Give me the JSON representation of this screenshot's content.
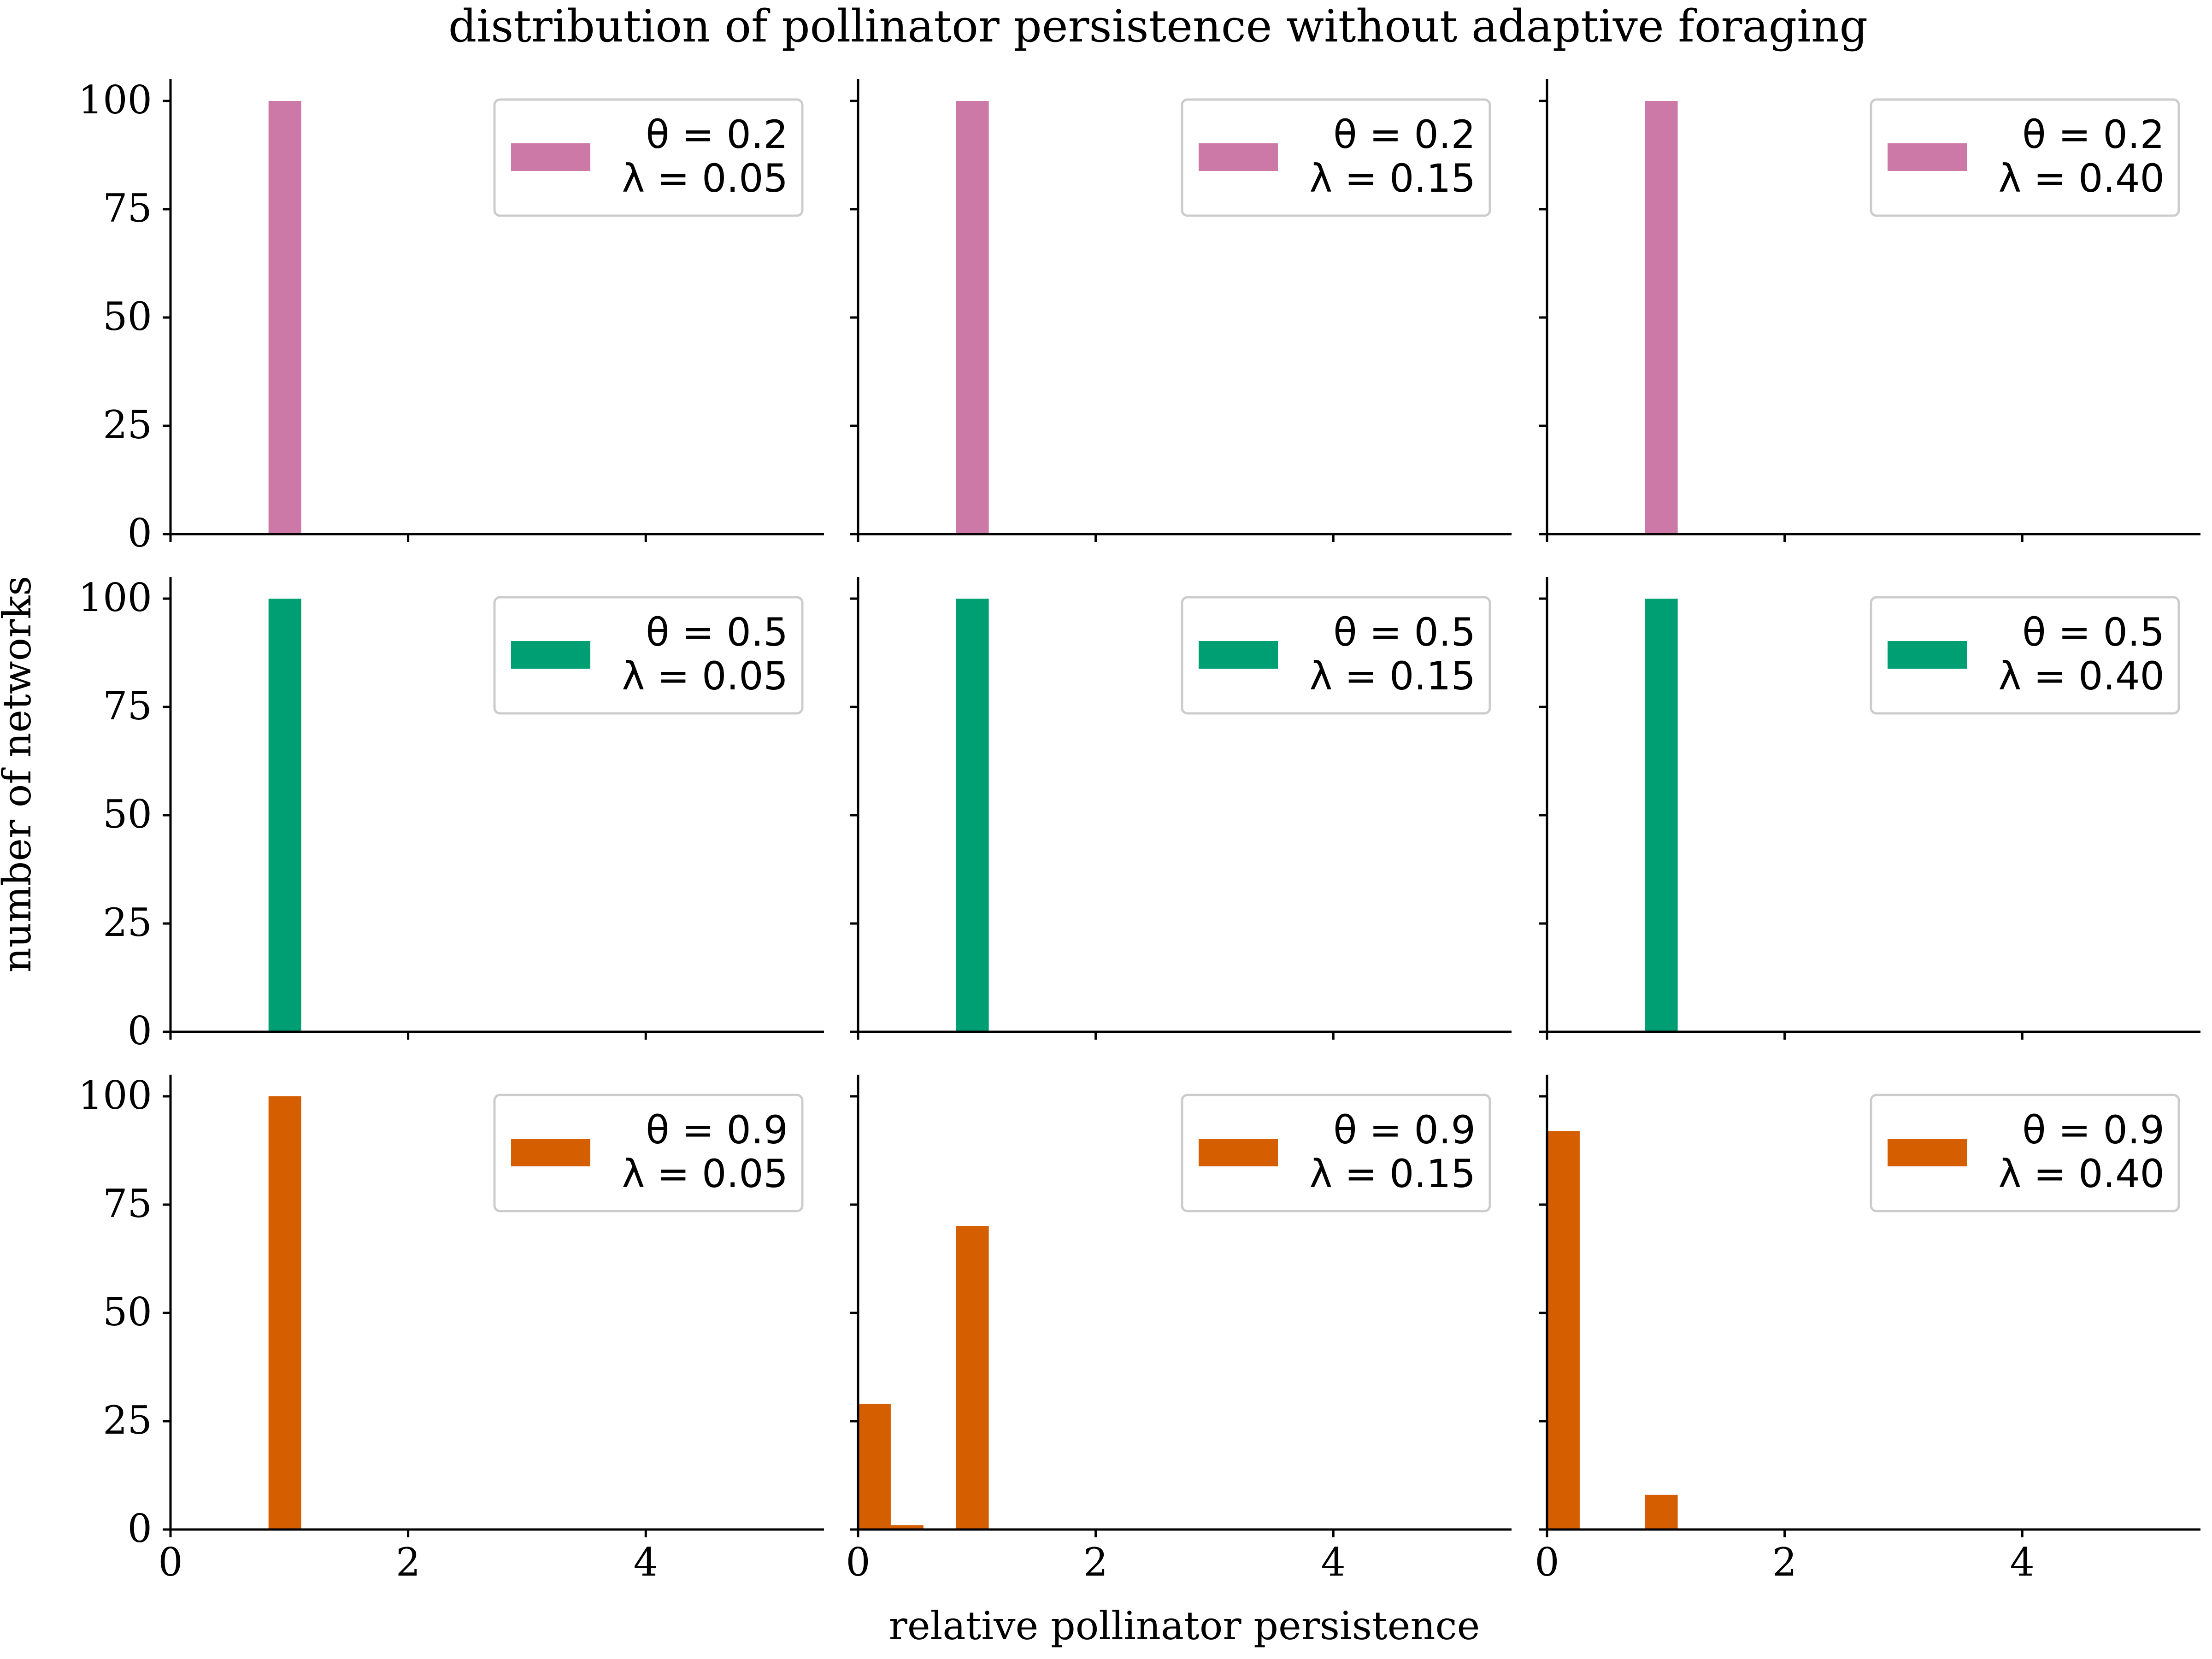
{
  "title": "distribution of pollinator persistence without adaptive foraging",
  "xlabel": "relative pollinator persistence",
  "ylabel": "number of networks",
  "colors": {
    "theta_0.2": "#cc79a7",
    "theta_0.5": "#009e73",
    "theta_0.9": "#d55e00",
    "axis": "#000000"
  },
  "chart_data": {
    "type": "bar",
    "layout": "3x3 grid of histograms, shared x and y axes",
    "xlim": [
      0,
      5.5
    ],
    "ylim": [
      0,
      105
    ],
    "x_ticks": [
      "0",
      "2",
      "4"
    ],
    "y_ticks": [
      "0",
      "25",
      "50",
      "75",
      "100"
    ],
    "bin_width": 0.275,
    "legend_position": "upper right",
    "grid": false,
    "panels": [
      {
        "theta": "0.2",
        "lambda": "0.05",
        "legend_theta": "θ = 0.2",
        "legend_lambda": "λ = 0.05",
        "color": "#cc79a7",
        "bins": [
          {
            "x": 0.825,
            "value": 100
          }
        ]
      },
      {
        "theta": "0.2",
        "lambda": "0.15",
        "legend_theta": "θ = 0.2",
        "legend_lambda": "λ = 0.15",
        "color": "#cc79a7",
        "bins": [
          {
            "x": 0.825,
            "value": 100
          }
        ]
      },
      {
        "theta": "0.2",
        "lambda": "0.40",
        "legend_theta": "θ = 0.2",
        "legend_lambda": "λ = 0.40",
        "color": "#cc79a7",
        "bins": [
          {
            "x": 0.825,
            "value": 100
          }
        ]
      },
      {
        "theta": "0.5",
        "lambda": "0.05",
        "legend_theta": "θ = 0.5",
        "legend_lambda": "λ = 0.05",
        "color": "#009e73",
        "bins": [
          {
            "x": 0.825,
            "value": 100
          }
        ]
      },
      {
        "theta": "0.5",
        "lambda": "0.15",
        "legend_theta": "θ = 0.5",
        "legend_lambda": "λ = 0.15",
        "color": "#009e73",
        "bins": [
          {
            "x": 0.825,
            "value": 100
          }
        ]
      },
      {
        "theta": "0.5",
        "lambda": "0.40",
        "legend_theta": "θ = 0.5",
        "legend_lambda": "λ = 0.40",
        "color": "#009e73",
        "bins": [
          {
            "x": 0.825,
            "value": 100
          }
        ]
      },
      {
        "theta": "0.9",
        "lambda": "0.05",
        "legend_theta": "θ = 0.9",
        "legend_lambda": "λ = 0.05",
        "color": "#d55e00",
        "bins": [
          {
            "x": 0.825,
            "value": 100
          }
        ]
      },
      {
        "theta": "0.9",
        "lambda": "0.15",
        "legend_theta": "θ = 0.9",
        "legend_lambda": "λ = 0.15",
        "color": "#d55e00",
        "bins": [
          {
            "x": 0.0,
            "value": 29
          },
          {
            "x": 0.275,
            "value": 1
          },
          {
            "x": 0.825,
            "value": 70
          }
        ]
      },
      {
        "theta": "0.9",
        "lambda": "0.40",
        "legend_theta": "θ = 0.9",
        "legend_lambda": "λ = 0.40",
        "color": "#d55e00",
        "bins": [
          {
            "x": 0.0,
            "value": 92
          },
          {
            "x": 0.825,
            "value": 8
          }
        ]
      }
    ]
  }
}
